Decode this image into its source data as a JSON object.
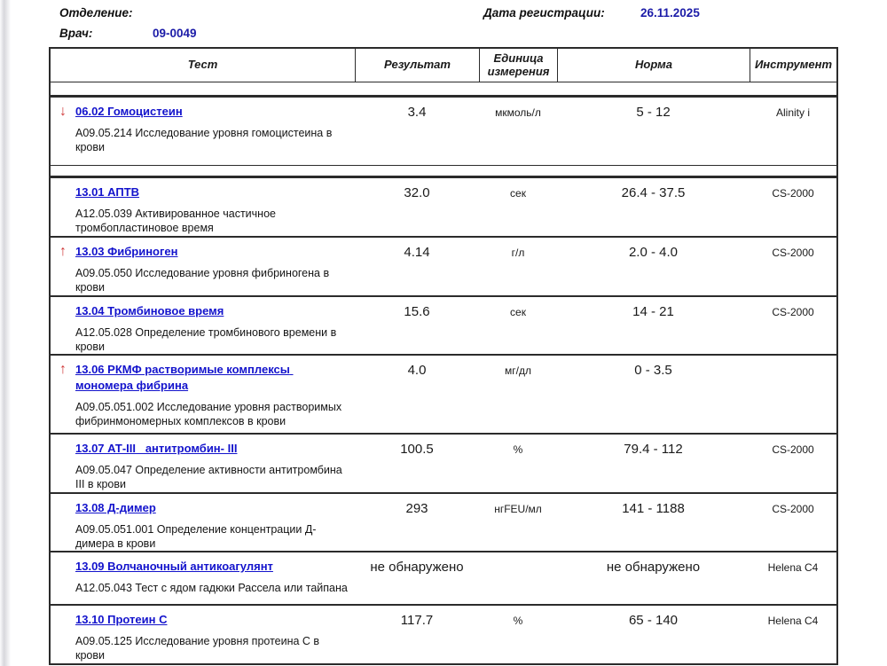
{
  "meta": {
    "department_label": "Отделение:",
    "department_value": "",
    "registration_date_label": "Дата регистрации:",
    "registration_date_value": "26.11.2025",
    "doctor_label": "Врач:",
    "doctor_value": "09-0049"
  },
  "icons": {
    "up_arrow": "↑",
    "down_arrow": "↓"
  },
  "colors": {
    "link_blue": "#1313cc",
    "meta_value_blue": "#1c1ca8",
    "abnormal_red": "#cf3636",
    "border_dark": "#2b2b2b"
  },
  "table": {
    "headers": [
      "Тест",
      "Результат",
      "Единица измерения",
      "Норма",
      "Инструмент"
    ],
    "rows": [
      {
        "flag": "down",
        "name": "06.02 Гомоцистеин",
        "description": "А09.05.214 Исследование уровня гомоцистеина в крови",
        "result": "3.4",
        "unit": "мкмоль/л",
        "norm": "5 - 12",
        "instrument": "Alinity i",
        "gap_after": true
      },
      {
        "flag": "none",
        "name": "13.01 АПТВ",
        "description": "А12.05.039 Активированное частичное тромбопластиновое время",
        "result": "32.0",
        "unit": "сек",
        "norm": "26.4 - 37.5",
        "instrument": "CS-2000",
        "gap_after": false
      },
      {
        "flag": "up",
        "name": "13.03 Фибриноген",
        "description": "А09.05.050 Исследование уровня фибриногена в крови",
        "result": "4.14",
        "unit": "г/л",
        "norm": "2.0 - 4.0",
        "instrument": "CS-2000",
        "gap_after": false
      },
      {
        "flag": "none",
        "name": "13.04 Тромбиновое время",
        "description": "А12.05.028 Определение тромбинового времени в крови",
        "result": "15.6",
        "unit": "сек",
        "norm": "14 - 21",
        "instrument": "CS-2000",
        "gap_after": false
      },
      {
        "flag": "up",
        "name": "13.06 РКМФ растворимые комплексы мономера фибрина",
        "description": "А09.05.051.002 Исследование уровня растворимых фибринмономерных комплексов в крови",
        "result": "4.0",
        "unit": "мг/дл",
        "norm": "0 - 3.5",
        "instrument": "",
        "gap_after": false
      },
      {
        "flag": "none",
        "name": "13.07 АТ-III   антитромбин- III",
        "description": "А09.05.047 Определение активности антитромбина III в крови",
        "result": "100.5",
        "unit": "%",
        "norm": "79.4 - 112",
        "instrument": "CS-2000",
        "gap_after": false
      },
      {
        "flag": "none",
        "name": "13.08 Д-димер",
        "description": "А09.05.051.001 Определение концентрации Д-димера в крови",
        "result": "293",
        "unit": "нгFEU/мл",
        "norm": "141 - 1188",
        "instrument": "CS-2000",
        "gap_after": false
      },
      {
        "flag": "none",
        "name": "13.09 Волчаночный антикоагулянт",
        "description": "А12.05.043 Тест с ядом гадюки Рассела или тайпана",
        "result": "не обнаружено",
        "unit": "",
        "norm": "не обнаружено",
        "instrument": "Helena C4",
        "gap_after": false
      },
      {
        "flag": "none",
        "name": "13.10 Протеин С",
        "description": "А09.05.125 Исследование уровня протеина С в крови",
        "result": "117.7",
        "unit": "%",
        "norm": "65 - 140",
        "instrument": "Helena C4",
        "gap_after": false
      }
    ]
  }
}
